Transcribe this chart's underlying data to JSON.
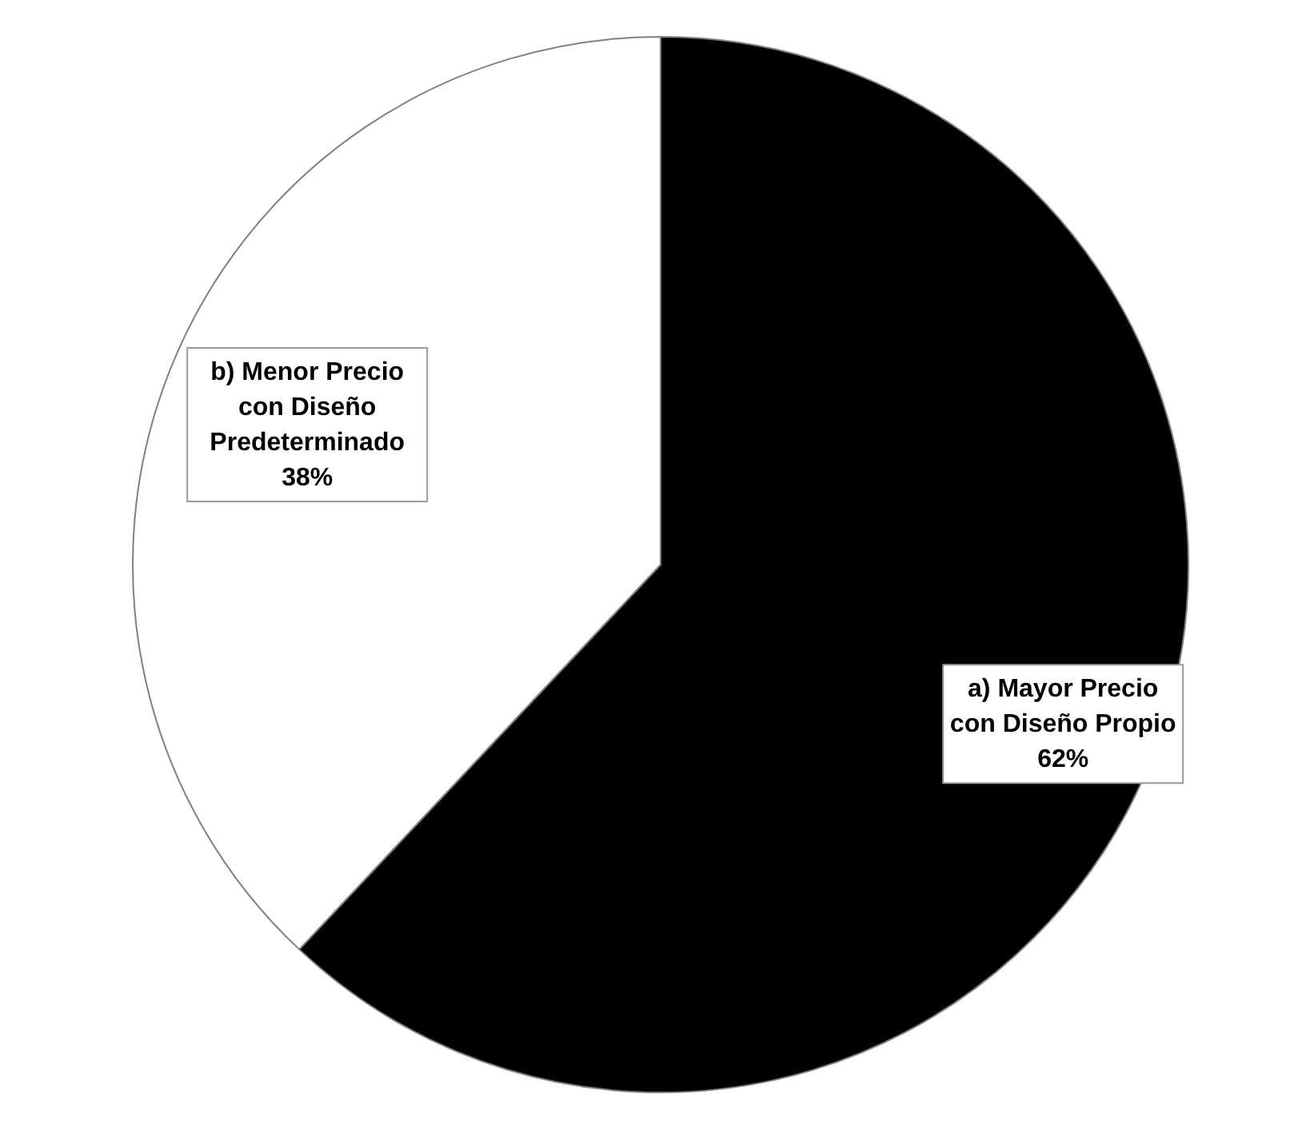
{
  "chart_data": {
    "type": "pie",
    "categories": [
      "a) Mayor Precio con Diseño Propio",
      "b) Menor Precio con Diseño Predeterminado"
    ],
    "values": [
      62,
      38
    ],
    "value_labels": [
      "62%",
      "38%"
    ],
    "colors": [
      "#000000",
      "#ffffff"
    ]
  }
}
